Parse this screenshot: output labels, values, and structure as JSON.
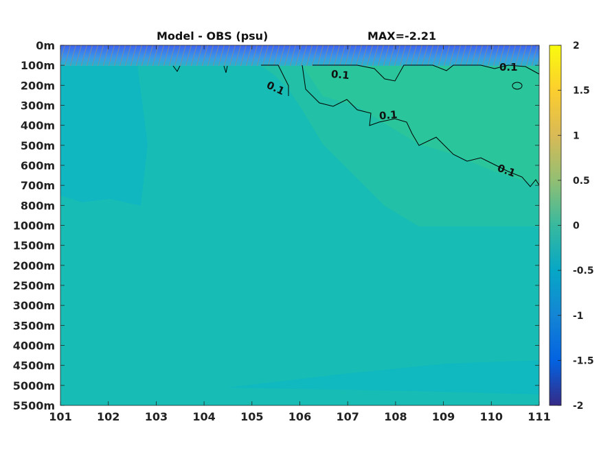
{
  "chart_data": {
    "type": "heatmap",
    "title": "Model - OBS (psu)",
    "subtitle": "MAX=-2.21",
    "x_ticks": [
      "101",
      "102",
      "103",
      "104",
      "105",
      "106",
      "107",
      "108",
      "109",
      "110",
      "111"
    ],
    "xlim": [
      101,
      111
    ],
    "y_ticks": [
      "0m",
      "100m",
      "200m",
      "300m",
      "400m",
      "500m",
      "600m",
      "700m",
      "800m",
      "1000m",
      "1500m",
      "2000m",
      "2500m",
      "3000m",
      "3500m",
      "4000m",
      "4500m",
      "5000m",
      "5500m"
    ],
    "colorbar": {
      "range": [
        -2,
        2
      ],
      "ticks": [
        "2",
        "1.5",
        "1",
        "0.5",
        "0",
        "-0.5",
        "-1",
        "-1.5",
        "-2"
      ],
      "colormap": "parula"
    },
    "contour_labels": [
      "0.1",
      "0.1",
      "0.1",
      "0.1",
      "0.1"
    ],
    "contour_level": 0.1,
    "colors": {
      "background_field": "#17bdb5",
      "deep_field": "#14b9bb",
      "positive_field": "#2ec296",
      "surface_negative": "#3f7cf0",
      "contour_line": "#000000",
      "surface_contours": "#808080"
    }
  }
}
